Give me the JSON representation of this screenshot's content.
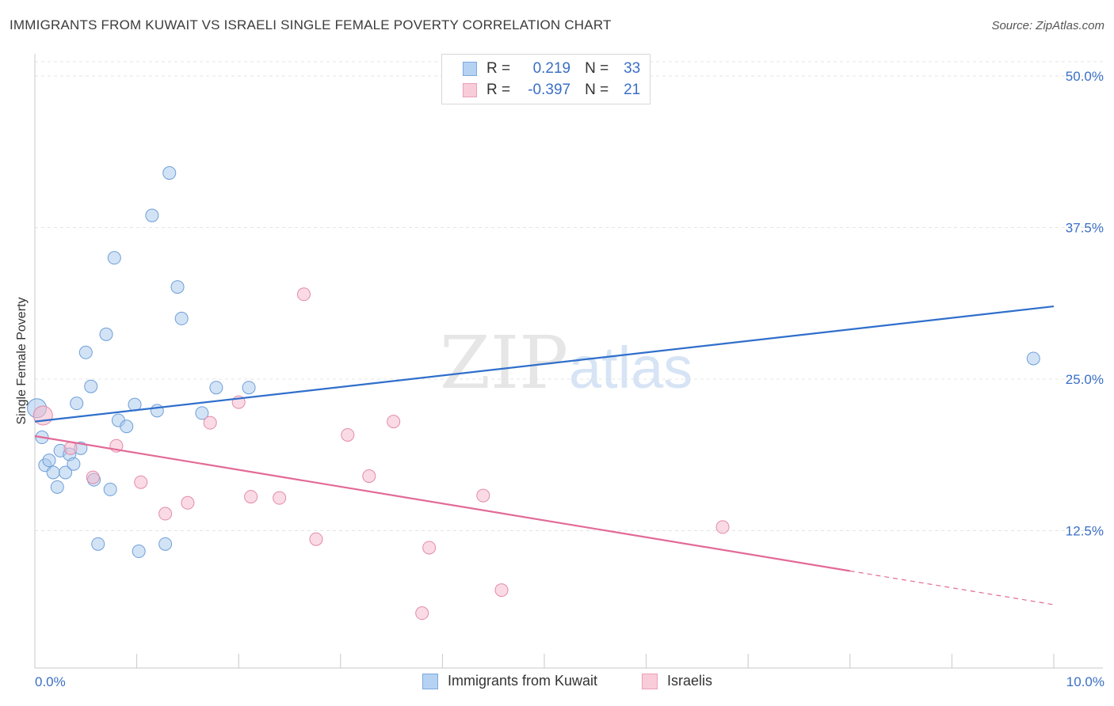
{
  "chart_data": {
    "type": "scatter",
    "title": "IMMIGRANTS FROM KUWAIT VS ISRAELI SINGLE FEMALE POVERTY CORRELATION CHART",
    "source": "Source: ZipAtlas.com",
    "xlabel": "",
    "ylabel": "Single Female Poverty",
    "xlim": [
      0,
      10
    ],
    "ylim": [
      0,
      50
    ],
    "x_tick_labels": {
      "min": "0.0%",
      "max": "10.0%"
    },
    "y_ticks": [
      {
        "value": 12.5,
        "label": "12.5%"
      },
      {
        "value": 25.0,
        "label": "25.0%"
      },
      {
        "value": 37.5,
        "label": "37.5%"
      },
      {
        "value": 50.0,
        "label": "50.0%"
      }
    ],
    "watermark": {
      "zip": "ZIP",
      "atlas": "atlas"
    },
    "legend": {
      "r_label": "R =",
      "n_label": "N =",
      "entries": [
        {
          "r": "0.219",
          "n": "33"
        },
        {
          "r": "-0.397",
          "n": "21"
        }
      ]
    },
    "series": [
      {
        "name": "Immigrants from Kuwait",
        "color": "#a8c8ee",
        "stroke": "#6d9fd8",
        "trend_color": "#2f6fcb",
        "r": 0.219,
        "n": 33,
        "trend": {
          "x0": 0.0,
          "y0": 21.5,
          "x1": 10.0,
          "y1": 31.0,
          "solid_until": 10.0
        },
        "points": [
          [
            0.02,
            22.6
          ],
          [
            0.07,
            20.2
          ],
          [
            0.1,
            17.9
          ],
          [
            0.14,
            18.3
          ],
          [
            0.18,
            17.3
          ],
          [
            0.22,
            16.1
          ],
          [
            0.25,
            19.1
          ],
          [
            0.3,
            17.3
          ],
          [
            0.34,
            18.8
          ],
          [
            0.38,
            18.0
          ],
          [
            0.41,
            23.0
          ],
          [
            0.45,
            19.3
          ],
          [
            0.5,
            27.2
          ],
          [
            0.55,
            24.4
          ],
          [
            0.58,
            16.7
          ],
          [
            0.62,
            11.4
          ],
          [
            0.7,
            28.7
          ],
          [
            0.74,
            15.9
          ],
          [
            0.78,
            35.0
          ],
          [
            0.82,
            21.6
          ],
          [
            0.9,
            21.1
          ],
          [
            0.98,
            22.9
          ],
          [
            1.02,
            10.8
          ],
          [
            1.15,
            38.5
          ],
          [
            1.2,
            22.4
          ],
          [
            1.28,
            11.4
          ],
          [
            1.32,
            42.0
          ],
          [
            1.4,
            32.6
          ],
          [
            1.44,
            30.0
          ],
          [
            1.64,
            22.2
          ],
          [
            1.78,
            24.3
          ],
          [
            2.1,
            24.3
          ],
          [
            9.8,
            26.7
          ]
        ]
      },
      {
        "name": "Israelis",
        "color": "#f5b8cb",
        "stroke": "#e48aa8",
        "trend_color": "#e26a96",
        "r": -0.397,
        "n": 21,
        "trend": {
          "x0": 0.0,
          "y0": 20.3,
          "x1": 10.0,
          "y1": 6.4,
          "solid_until": 8.0
        },
        "points": [
          [
            0.08,
            22.0
          ],
          [
            0.35,
            19.3
          ],
          [
            0.57,
            16.9
          ],
          [
            0.8,
            19.5
          ],
          [
            1.04,
            16.5
          ],
          [
            1.28,
            13.9
          ],
          [
            1.5,
            14.8
          ],
          [
            1.72,
            21.4
          ],
          [
            2.0,
            23.1
          ],
          [
            2.12,
            15.3
          ],
          [
            2.4,
            15.2
          ],
          [
            2.64,
            32.0
          ],
          [
            2.76,
            11.8
          ],
          [
            3.07,
            20.4
          ],
          [
            3.28,
            17.0
          ],
          [
            3.52,
            21.5
          ],
          [
            3.8,
            5.7
          ],
          [
            3.87,
            11.1
          ],
          [
            4.4,
            15.4
          ],
          [
            4.58,
            7.6
          ],
          [
            6.75,
            12.8
          ]
        ]
      }
    ]
  }
}
